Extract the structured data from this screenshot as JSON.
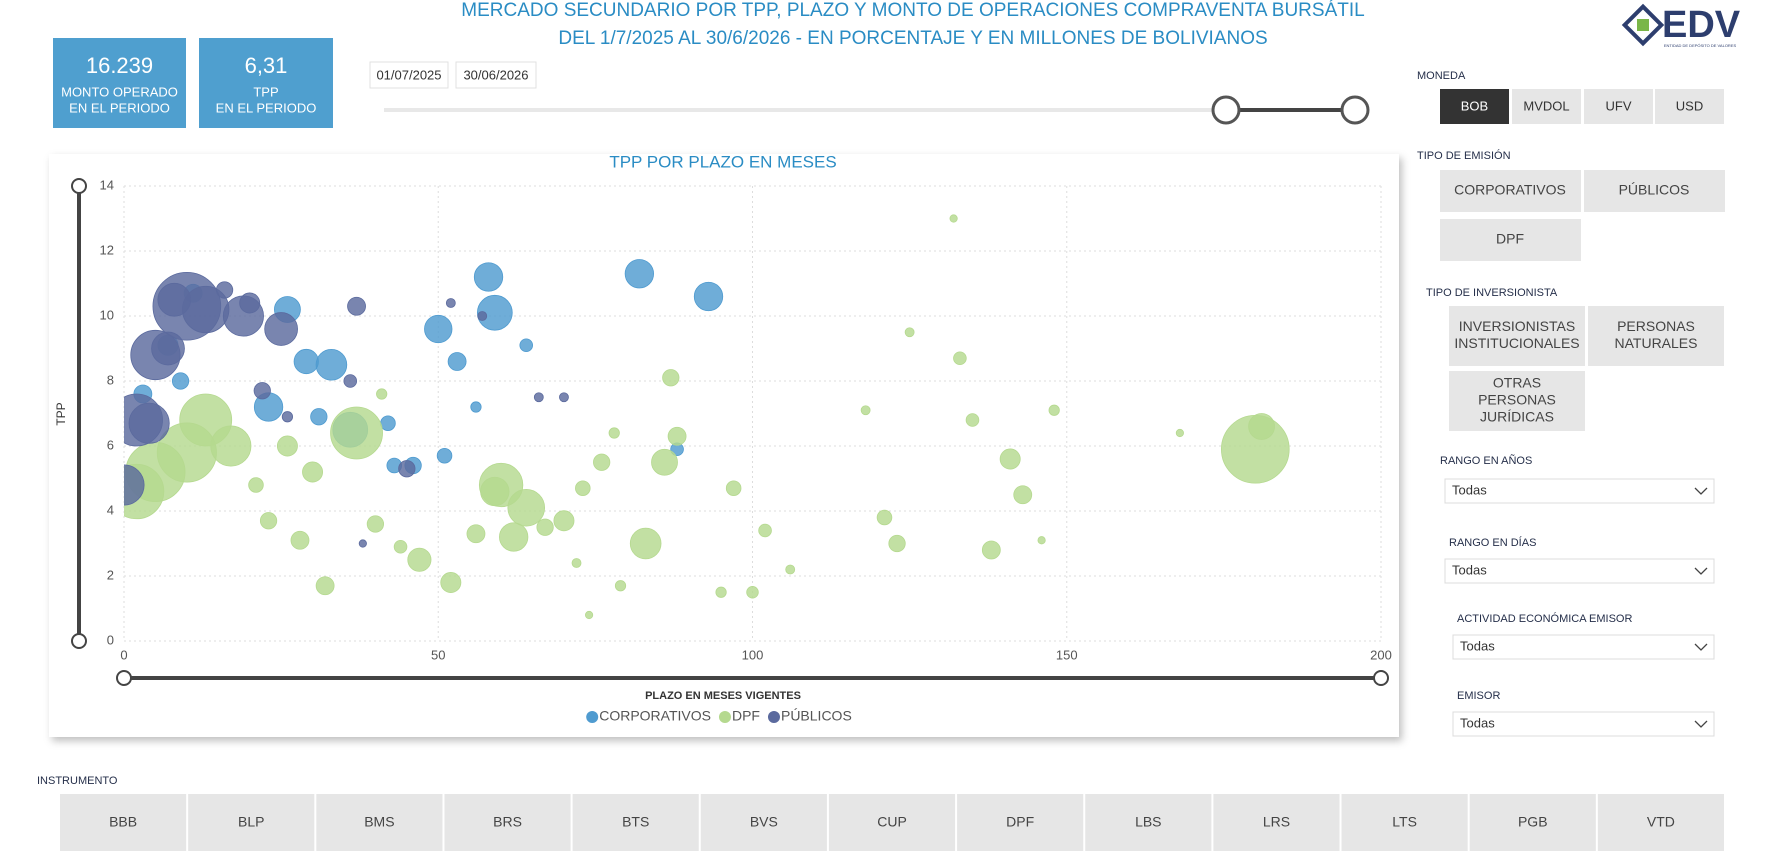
{
  "header": {
    "title": [
      "MERCADO SECUNDARIO POR TPP, PLAZO Y MONTO DE OPERACIONES COMPRAVENTA BURSÁTIL",
      "DEL 1/7/2025 AL 30/6/2026 - EN PORCENTAJE Y EN MILLONES DE BOLIVIANOS"
    ],
    "logo": "EDV",
    "logo_sub": "ENTIDAD DE DEPÓSITO DE VALORES"
  },
  "kpis": [
    {
      "value": "16.239",
      "label": [
        "MONTO OPERADO",
        "EN EL PERIODO"
      ]
    },
    {
      "value": "6,31",
      "label": [
        "TPP",
        "EN EL PERIODO"
      ]
    }
  ],
  "date_range": [
    "01/07/2025",
    "30/06/2026"
  ],
  "moneda": {
    "label": "MONEDA",
    "options": [
      "BOB",
      "MVDOL",
      "UFV",
      "USD"
    ],
    "selected": 0
  },
  "tipo_emision": {
    "label": "TIPO DE EMISIÓN",
    "options": [
      "CORPORATIVOS",
      "PÚBLICOS",
      "DPF"
    ]
  },
  "tipo_inversionista": {
    "label": "TIPO DE INVERSIONISTA",
    "options": [
      [
        "INVERSIONISTAS",
        "INSTITUCIONALES"
      ],
      [
        "PERSONAS",
        "NATURALES"
      ],
      [
        "OTRAS",
        "PERSONAS",
        "JURÍDICAS"
      ]
    ]
  },
  "dropdowns": [
    {
      "label": "RANGO EN AÑOS",
      "value": "Todas"
    },
    {
      "label": "RANGO EN DÍAS",
      "value": "Todas"
    },
    {
      "label": "ACTIVIDAD ECONÓMICA EMISOR",
      "value": "Todas"
    },
    {
      "label": "EMISOR",
      "value": "Todas"
    }
  ],
  "instrumento": {
    "label": "INSTRUMENTO",
    "options": [
      "BBB",
      "BLP",
      "BMS",
      "BRS",
      "BTS",
      "BVS",
      "CUP",
      "DPF",
      "LBS",
      "LRS",
      "LTS",
      "PGB",
      "VTD"
    ]
  },
  "chart_data": {
    "type": "bubble",
    "title": "TPP POR PLAZO EN MESES",
    "x_label": "PLAZO EN MESES VIGENTES",
    "y_label": "TPP",
    "xlim": [
      0,
      200
    ],
    "ylim": [
      0,
      14
    ],
    "xticks": [
      0,
      50,
      100,
      150,
      200
    ],
    "yticks": [
      0,
      2,
      4,
      6,
      8,
      10,
      12,
      14
    ],
    "grid": true,
    "legend": "bottom",
    "series": [
      {
        "name": "CORPORATIVOS",
        "color": "#4f9bd0",
        "x": [
          82,
          58,
          93,
          59,
          50,
          33,
          29,
          26,
          53,
          23,
          36,
          7,
          9,
          3,
          11,
          31,
          43,
          46,
          51,
          88,
          64,
          42,
          56
        ],
        "values": [
          11.3,
          11.2,
          10.6,
          10.1,
          9.6,
          8.5,
          8.6,
          10.2,
          8.6,
          7.2,
          6.5,
          9.1,
          8.0,
          7.6,
          10.7,
          6.9,
          5.4,
          5.4,
          5.7,
          5.9,
          9.1,
          6.7,
          7.2
        ],
        "sizes": [
          30,
          30,
          30,
          45,
          28,
          35,
          22,
          25,
          12,
          30,
          45,
          15,
          10,
          12,
          12,
          10,
          8,
          10,
          8,
          6,
          6,
          8,
          4
        ]
      },
      {
        "name": "DPF",
        "color": "#b5d98f",
        "x": [
          180,
          181,
          13,
          37,
          10,
          5,
          2,
          17,
          60,
          64,
          83,
          86,
          62,
          47,
          52,
          32,
          59,
          76,
          132,
          133,
          125,
          141,
          143,
          138,
          121,
          123,
          106,
          100,
          95,
          102,
          97,
          87,
          88,
          78,
          73,
          70,
          67,
          40,
          44,
          28,
          23,
          21,
          30,
          26,
          135,
          148,
          168,
          146,
          72,
          74,
          79,
          56,
          41,
          118
        ],
        "values": [
          5.9,
          6.6,
          6.8,
          6.4,
          5.8,
          5.2,
          4.6,
          6.0,
          4.8,
          4.1,
          3.0,
          5.5,
          3.2,
          2.5,
          1.8,
          1.7,
          4.6,
          5.5,
          13.0,
          8.7,
          9.5,
          5.6,
          4.5,
          2.8,
          3.8,
          3.0,
          2.2,
          1.5,
          1.5,
          3.4,
          4.7,
          8.1,
          6.3,
          6.4,
          4.7,
          3.7,
          3.5,
          3.6,
          2.9,
          3.1,
          3.7,
          4.8,
          5.2,
          6.0,
          6.8,
          7.1,
          6.4,
          3.1,
          2.4,
          0.8,
          1.7,
          3.3,
          7.6,
          7.1
        ],
        "sizes": [
          170,
          25,
          100,
          100,
          130,
          130,
          110,
          60,
          70,
          50,
          35,
          25,
          30,
          20,
          15,
          12,
          30,
          10,
          2,
          6,
          3,
          15,
          12,
          12,
          8,
          10,
          3,
          5,
          4,
          6,
          8,
          10,
          12,
          4,
          8,
          15,
          10,
          10,
          6,
          12,
          10,
          8,
          15,
          15,
          6,
          4,
          2,
          2,
          3,
          2,
          4,
          12,
          4,
          3
        ]
      },
      {
        "name": "PÚBLICOS",
        "color": "#5b6a9e",
        "x": [
          10,
          13,
          8,
          5,
          7,
          2,
          4,
          19,
          25,
          20,
          16,
          22,
          37,
          45,
          66,
          70,
          0,
          26,
          36,
          38,
          52,
          57
        ],
        "values": [
          10.3,
          10.2,
          10.5,
          8.8,
          9.0,
          6.8,
          6.7,
          10.0,
          9.6,
          10.4,
          10.8,
          7.7,
          10.3,
          5.3,
          7.5,
          7.5,
          4.8,
          6.9,
          8.0,
          3.0,
          10.4,
          10.0
        ],
        "sizes": [
          170,
          80,
          40,
          90,
          40,
          100,
          60,
          60,
          40,
          15,
          10,
          10,
          12,
          10,
          3,
          3,
          60,
          4,
          6,
          2,
          3,
          3
        ]
      }
    ]
  }
}
